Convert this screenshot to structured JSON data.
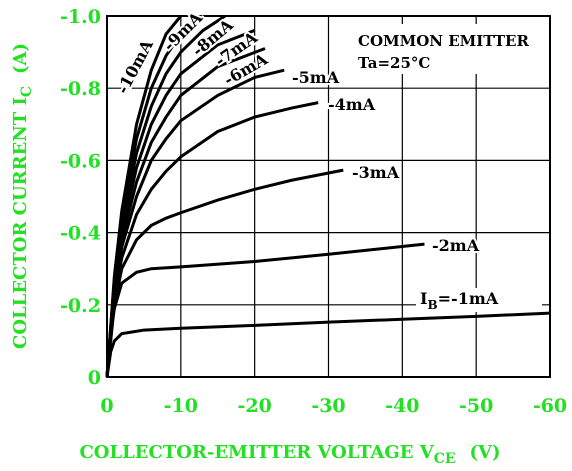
{
  "chart_data": {
    "type": "line",
    "x_label": {
      "text": "COLLECTOR-EMITTER VOLTAGE V",
      "sub": "CE",
      "unit": "(V)"
    },
    "y_label": {
      "text": "COLLECTOR CURRENT I",
      "sub": "C",
      "unit": "(A)"
    },
    "annotations": [
      "COMMON EMITTER",
      "Ta=25°C"
    ],
    "ib_prefix": {
      "text": "I",
      "sub": "B",
      "eq": "="
    },
    "xlim": [
      0,
      -60
    ],
    "xticks": [
      0,
      -10,
      -20,
      -30,
      -40,
      -50,
      -60
    ],
    "ylim": [
      0,
      -1
    ],
    "yticks": [
      0,
      -0.2,
      -0.4,
      -0.6,
      -0.8,
      {
        "value": -1,
        "label": "-1.0"
      }
    ],
    "grid": true,
    "series": [
      {
        "name": "-1mA",
        "color": "#000000",
        "x": [
          0,
          -0.5,
          -1,
          -2,
          -5,
          -10,
          -20,
          -30,
          -40,
          -50,
          -60
        ],
        "values": [
          0,
          -0.07,
          -0.1,
          -0.12,
          -0.13,
          -0.135,
          -0.143,
          -0.152,
          -0.16,
          -0.168,
          -0.177
        ]
      },
      {
        "name": "-2mA",
        "color": "#000000",
        "x": [
          0,
          -0.5,
          -1,
          -2,
          -4,
          -6,
          -10,
          -20,
          -30,
          -43
        ],
        "values": [
          0,
          -0.12,
          -0.19,
          -0.26,
          -0.29,
          -0.3,
          -0.305,
          -0.32,
          -0.34,
          -0.368
        ]
      },
      {
        "name": "-3mA",
        "color": "#000000",
        "x": [
          0,
          -1,
          -2,
          -4,
          -6,
          -8,
          -10,
          -15,
          -20,
          -25,
          -32
        ],
        "values": [
          0,
          -0.2,
          -0.3,
          -0.38,
          -0.42,
          -0.44,
          -0.455,
          -0.49,
          -0.52,
          -0.545,
          -0.573
        ]
      },
      {
        "name": "-4mA",
        "color": "#000000",
        "x": [
          0,
          -1,
          -2,
          -4,
          -6,
          -8,
          -10,
          -15,
          -20,
          -25,
          -28.6
        ],
        "values": [
          0,
          -0.22,
          -0.33,
          -0.45,
          -0.52,
          -0.57,
          -0.61,
          -0.68,
          -0.72,
          -0.745,
          -0.76
        ]
      },
      {
        "name": "-5mA",
        "color": "#000000",
        "x": [
          0,
          -1,
          -2,
          -4,
          -6,
          -8,
          -10,
          -15,
          -20,
          -24
        ],
        "values": [
          0,
          -0.23,
          -0.36,
          -0.5,
          -0.6,
          -0.66,
          -0.71,
          -0.78,
          -0.83,
          -0.85
        ]
      },
      {
        "name": "-6mA",
        "color": "#000000",
        "x": [
          0,
          -1,
          -2,
          -4,
          -6,
          -8,
          -10,
          -15,
          -21.4
        ],
        "values": [
          0,
          -0.24,
          -0.38,
          -0.54,
          -0.65,
          -0.72,
          -0.78,
          -0.86,
          -0.91
        ]
      },
      {
        "name": "-7mA",
        "color": "#000000",
        "x": [
          0,
          -1,
          -2,
          -4,
          -6,
          -8,
          -10,
          -15,
          -20
        ],
        "values": [
          0,
          -0.25,
          -0.4,
          -0.58,
          -0.7,
          -0.78,
          -0.84,
          -0.92,
          -0.96
        ]
      },
      {
        "name": "-8mA",
        "color": "#000000",
        "x": [
          0,
          -1,
          -2,
          -4,
          -6,
          -8,
          -10,
          -13,
          -16
        ],
        "values": [
          0,
          -0.26,
          -0.42,
          -0.62,
          -0.75,
          -0.84,
          -0.9,
          -0.96,
          -1
        ]
      },
      {
        "name": "-9mA",
        "color": "#000000",
        "x": [
          0,
          -1,
          -2,
          -4,
          -6,
          -8,
          -10,
          -12.6
        ],
        "values": [
          0,
          -0.27,
          -0.44,
          -0.66,
          -0.8,
          -0.89,
          -0.95,
          -1
        ]
      },
      {
        "name": "-10mA",
        "color": "#000000",
        "x": [
          0,
          -1,
          -2,
          -4,
          -6,
          -8,
          -10
        ],
        "values": [
          0,
          -0.28,
          -0.46,
          -0.7,
          -0.85,
          -0.95,
          -1
        ]
      }
    ]
  }
}
